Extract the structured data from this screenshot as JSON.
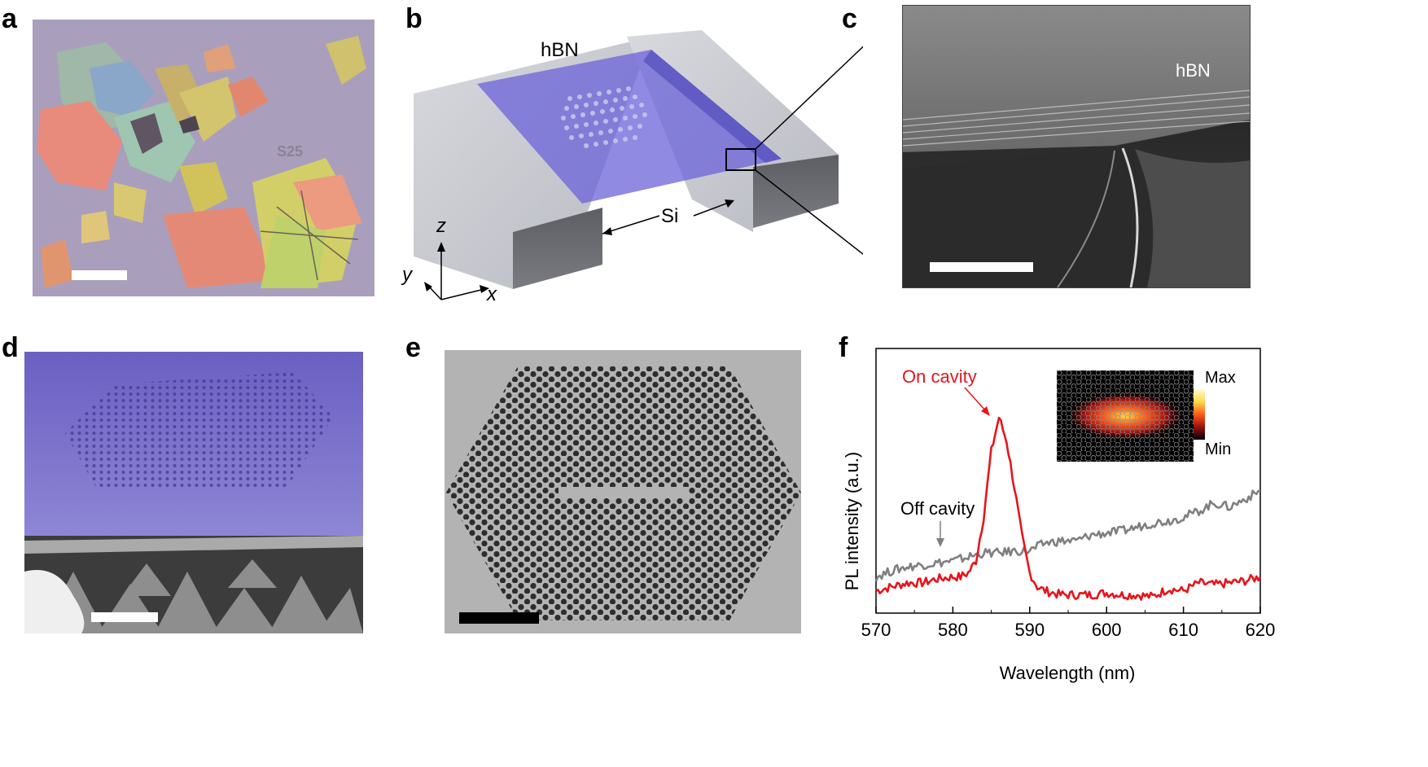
{
  "panels": {
    "a": {
      "letter": "a"
    },
    "b": {
      "letter": "b",
      "label_hbn": "hBN",
      "label_si": "Si",
      "axis_z": "z",
      "axis_y": "y",
      "axis_x": "x"
    },
    "c": {
      "letter": "c",
      "label_hbn": "hBN"
    },
    "d": {
      "letter": "d"
    },
    "e": {
      "letter": "e"
    },
    "f": {
      "letter": "f",
      "on_cavity": "On cavity",
      "off_cavity": "Off cavity",
      "colorbar_max": "Max",
      "colorbar_min": "Min"
    }
  },
  "colors": {
    "on_cavity": "#e8141b",
    "off_cavity": "#7f7f7f",
    "hbn_membrane": "#6b63d9",
    "si_block": "#c9cbd2"
  },
  "chart_data": {
    "type": "line",
    "xlabel": "Wavelength (nm)",
    "ylabel": "PL intensity (a.u.)",
    "xlim": [
      570,
      620
    ],
    "ylim": [
      0,
      1
    ],
    "xticks": [
      570,
      580,
      590,
      600,
      610,
      620
    ],
    "yticks": [],
    "grid": false,
    "series": [
      {
        "name": "On cavity",
        "x": [
          570,
          572,
          574,
          576,
          578,
          580,
          581,
          582,
          583,
          584,
          585,
          586,
          587,
          588,
          589,
          590,
          591,
          592,
          594,
          596,
          598,
          600,
          602,
          604,
          606,
          608,
          610,
          612,
          614,
          616,
          618,
          620
        ],
        "y": [
          0.03,
          0.05,
          0.07,
          0.07,
          0.09,
          0.1,
          0.1,
          0.12,
          0.18,
          0.4,
          0.73,
          0.9,
          0.78,
          0.55,
          0.3,
          0.12,
          0.05,
          0.03,
          0.01,
          0.01,
          0.01,
          0.02,
          0.01,
          0.01,
          0.0,
          0.04,
          0.03,
          0.07,
          0.06,
          0.07,
          0.08,
          0.1
        ]
      },
      {
        "name": "Off cavity",
        "x": [
          570,
          572,
          574,
          576,
          578,
          580,
          582,
          584,
          586,
          588,
          590,
          592,
          594,
          596,
          598,
          600,
          602,
          604,
          606,
          608,
          610,
          612,
          614,
          616,
          618,
          620
        ],
        "y": [
          0.1,
          0.13,
          0.15,
          0.16,
          0.17,
          0.18,
          0.2,
          0.22,
          0.22,
          0.23,
          0.23,
          0.27,
          0.28,
          0.28,
          0.31,
          0.32,
          0.33,
          0.35,
          0.37,
          0.38,
          0.4,
          0.43,
          0.47,
          0.45,
          0.49,
          0.53
        ]
      }
    ]
  }
}
